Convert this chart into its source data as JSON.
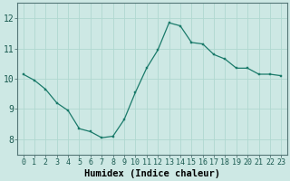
{
  "x": [
    0,
    1,
    2,
    3,
    4,
    5,
    6,
    7,
    8,
    9,
    10,
    11,
    12,
    13,
    14,
    15,
    16,
    17,
    18,
    19,
    20,
    21,
    22,
    23
  ],
  "y": [
    10.15,
    9.95,
    9.65,
    9.2,
    8.95,
    8.35,
    8.25,
    8.05,
    8.1,
    8.65,
    9.55,
    10.35,
    10.95,
    11.85,
    11.75,
    11.2,
    11.15,
    10.8,
    10.65,
    10.35,
    10.35,
    10.15,
    10.15,
    10.1
  ],
  "xlabel": "Humidex (Indice chaleur)",
  "xlim": [
    -0.5,
    23.5
  ],
  "ylim": [
    7.5,
    12.5
  ],
  "yticks": [
    8,
    9,
    10,
    11,
    12
  ],
  "xticks": [
    0,
    1,
    2,
    3,
    4,
    5,
    6,
    7,
    8,
    9,
    10,
    11,
    12,
    13,
    14,
    15,
    16,
    17,
    18,
    19,
    20,
    21,
    22,
    23
  ],
  "bg_color": "#cde8e4",
  "grid_color_major": "#b0d8d0",
  "grid_color_minor": "#c4e4de",
  "line_color": "#1a7a6a",
  "marker_color": "#1a7a6a",
  "xlabel_fontsize": 7.5,
  "tick_fontsize": 6.0,
  "ytick_fontsize": 7.0
}
